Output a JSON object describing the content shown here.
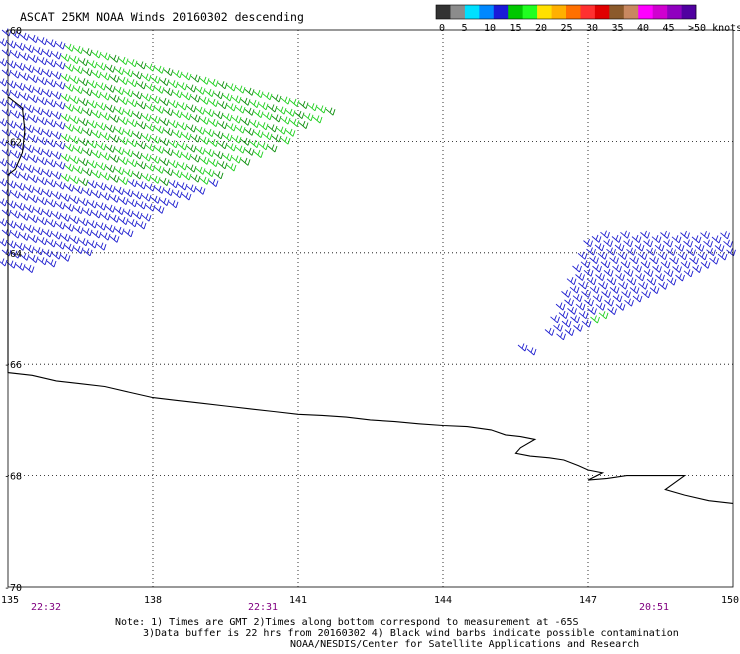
{
  "title": "ASCAT 25KM NOAA Winds 20160302 descending",
  "colorbar": {
    "colors": [
      "#333333",
      "#8c8c8c",
      "#00e0ff",
      "#0088ff",
      "#1a1ad8",
      "#00c800",
      "#20ff20",
      "#ffe000",
      "#ffb000",
      "#ff7000",
      "#ff3030",
      "#e00000",
      "#8b5a2b",
      "#c88860",
      "#ff00ff",
      "#d000d0",
      "#9000c0",
      "#5000a0"
    ],
    "labels": [
      "0",
      "5",
      "10",
      "15",
      "20",
      "25",
      "30",
      "35",
      "40",
      "45",
      ">50 knots"
    ],
    "label_colors": [
      "#000000",
      "#000000",
      "#000000",
      "#000000",
      "#000000",
      "#000000",
      "#000000",
      "#000000",
      "#000000",
      "#000000",
      "#000000"
    ]
  },
  "map": {
    "lon_range": [
      135,
      150
    ],
    "lat_range": [
      -70,
      -60
    ],
    "lon_ticks": [
      "135",
      "138",
      "141",
      "144",
      "147",
      "150"
    ],
    "lat_ticks": [
      "-60",
      "-62",
      "-64",
      "-66",
      "-68",
      "-70"
    ],
    "time_labels": [
      "22:32",
      "22:31",
      "20:51"
    ],
    "time_color": "#800080",
    "barb_colors": {
      "blue": "#2020d0",
      "green": "#20d020",
      "dark_green": "#109010",
      "black": "#000000"
    },
    "coastline_lonlat": [
      [
        135.0,
        -61.2
      ],
      [
        135.3,
        -61.4
      ],
      [
        135.35,
        -61.8
      ],
      [
        135.3,
        -62.2
      ],
      [
        135.15,
        -62.5
      ],
      [
        135.0,
        -62.6
      ],
      [
        135.0,
        -66.15
      ],
      [
        135.5,
        -66.2
      ],
      [
        136.0,
        -66.3
      ],
      [
        136.5,
        -66.35
      ],
      [
        137.0,
        -66.4
      ],
      [
        137.5,
        -66.5
      ],
      [
        138.0,
        -66.6
      ],
      [
        138.5,
        -66.65
      ],
      [
        139.0,
        -66.7
      ],
      [
        139.5,
        -66.75
      ],
      [
        140.0,
        -66.8
      ],
      [
        140.5,
        -66.85
      ],
      [
        141.0,
        -66.9
      ],
      [
        141.5,
        -66.92
      ],
      [
        142.0,
        -66.95
      ],
      [
        142.5,
        -67.0
      ],
      [
        143.0,
        -67.03
      ],
      [
        143.5,
        -67.07
      ],
      [
        144.0,
        -67.1
      ],
      [
        144.5,
        -67.12
      ],
      [
        145.0,
        -67.18
      ],
      [
        145.3,
        -67.27
      ],
      [
        145.6,
        -67.3
      ],
      [
        145.9,
        -67.35
      ],
      [
        145.6,
        -67.5
      ],
      [
        145.5,
        -67.6
      ],
      [
        145.8,
        -67.65
      ],
      [
        146.2,
        -67.68
      ],
      [
        146.5,
        -67.72
      ],
      [
        146.8,
        -67.82
      ],
      [
        147.0,
        -67.9
      ],
      [
        147.3,
        -67.95
      ],
      [
        147.0,
        -68.08
      ],
      [
        147.4,
        -68.05
      ],
      [
        147.8,
        -68.0
      ],
      [
        148.2,
        -68.0
      ],
      [
        148.6,
        -68.0
      ],
      [
        149.0,
        -68.0
      ],
      [
        148.6,
        -68.25
      ],
      [
        149.0,
        -68.35
      ],
      [
        149.5,
        -68.45
      ],
      [
        150.0,
        -68.5
      ]
    ]
  },
  "notes": {
    "line1": "Note: 1) Times are GMT 2)Times along bottom correspond to measurement at -65S",
    "line2": "3)Data buffer is 22 hrs from 20160302 4) Black wind barbs indicate possible contamination",
    "line3": "NOAA/NESDIS/Center for Satellite Applications and Research"
  }
}
